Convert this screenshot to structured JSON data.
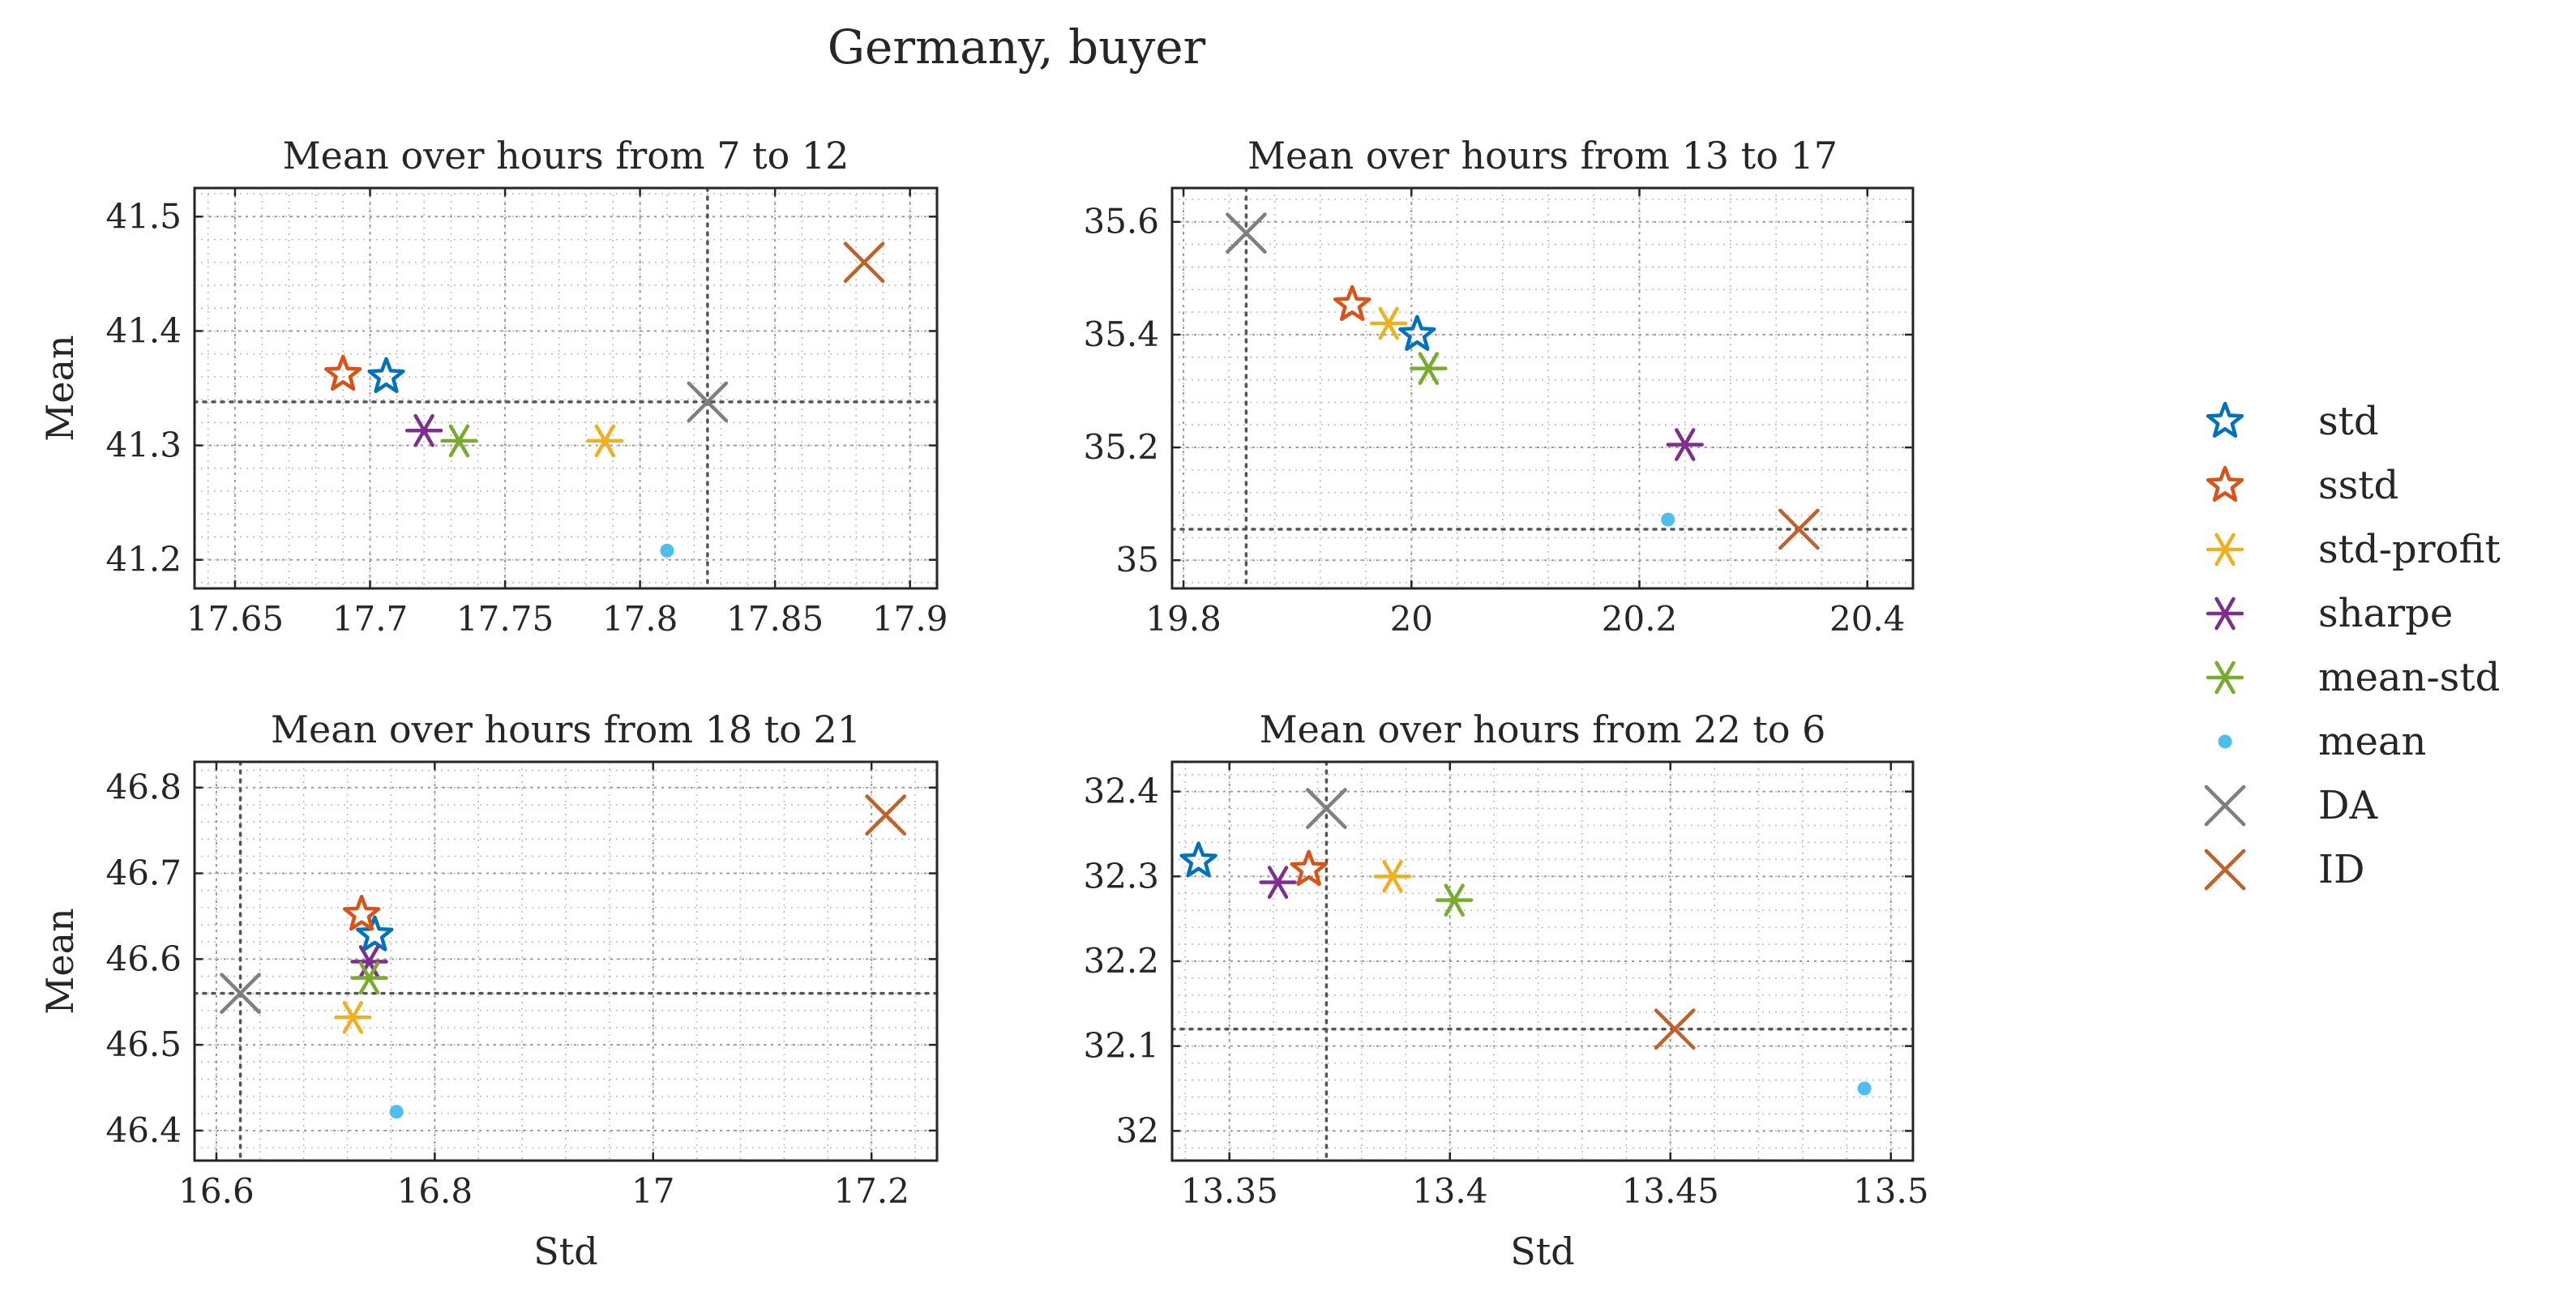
{
  "figure_title": "Germany, buyer",
  "colors": {
    "std": "#0072BD",
    "sstd": "#D95319",
    "std-profit": "#EDB120",
    "sharpe": "#7E2F8E",
    "mean-std": "#77AC30",
    "mean": "#4DBEEE",
    "DA": "#7f7f7f",
    "ID": "#C0602A",
    "axis": "#262626",
    "grid": "#bdbdbd"
  },
  "legend": [
    {
      "key": "std",
      "label": "std",
      "marker": "pentagram-icon"
    },
    {
      "key": "sstd",
      "label": "sstd",
      "marker": "pentagram-icon"
    },
    {
      "key": "std-profit",
      "label": "std-profit",
      "marker": "asterisk-icon"
    },
    {
      "key": "sharpe",
      "label": "sharpe",
      "marker": "asterisk-icon"
    },
    {
      "key": "mean-std",
      "label": "mean-std",
      "marker": "asterisk-icon"
    },
    {
      "key": "mean",
      "label": "mean",
      "marker": "dot-icon"
    },
    {
      "key": "DA",
      "label": "DA",
      "marker": "cross-icon"
    },
    {
      "key": "ID",
      "label": "ID",
      "marker": "cross-icon"
    }
  ],
  "chart_data": [
    {
      "type": "scatter",
      "title": "Mean over hours from 7 to 12",
      "xlabel": "",
      "ylabel": "Mean",
      "xlim": [
        17.635,
        17.91
      ],
      "ylim": [
        41.175,
        41.525
      ],
      "xticks": [
        17.65,
        17.7,
        17.75,
        17.8,
        17.85,
        17.9
      ],
      "xtick_labels": [
        "17.65",
        "17.7",
        "17.75",
        "17.8",
        "17.85",
        "17.9"
      ],
      "yticks": [
        41.2,
        41.3,
        41.4,
        41.5
      ],
      "ytick_labels": [
        "41.2",
        "41.3",
        "41.4",
        "41.5"
      ],
      "grid": true,
      "minor_grid": true,
      "ref_lines": {
        "x": 17.825,
        "y": 41.338
      },
      "points": [
        {
          "series": "std",
          "x": 17.706,
          "y": 41.36
        },
        {
          "series": "sstd",
          "x": 17.69,
          "y": 41.362
        },
        {
          "series": "std-profit",
          "x": 17.787,
          "y": 41.304
        },
        {
          "series": "sharpe",
          "x": 17.72,
          "y": 41.313
        },
        {
          "series": "mean-std",
          "x": 17.733,
          "y": 41.304
        },
        {
          "series": "mean",
          "x": 17.81,
          "y": 41.208
        },
        {
          "series": "DA",
          "x": 17.825,
          "y": 41.338
        },
        {
          "series": "ID",
          "x": 17.883,
          "y": 41.46
        }
      ]
    },
    {
      "type": "scatter",
      "title": "Mean over hours from 13 to 17",
      "xlabel": "",
      "ylabel": "",
      "xlim": [
        19.79,
        20.44
      ],
      "ylim": [
        34.95,
        35.66
      ],
      "xticks": [
        19.8,
        20.0,
        20.2,
        20.4
      ],
      "xtick_labels": [
        "19.8",
        "20",
        "20.2",
        "20.4"
      ],
      "yticks": [
        35.0,
        35.2,
        35.4,
        35.6
      ],
      "ytick_labels": [
        "35",
        "35.2",
        "35.4",
        "35.6"
      ],
      "grid": true,
      "minor_grid": true,
      "ref_lines": {
        "x": 19.855,
        "y": 35.055
      },
      "points": [
        {
          "series": "std",
          "x": 20.005,
          "y": 35.4
        },
        {
          "series": "sstd",
          "x": 19.948,
          "y": 35.453
        },
        {
          "series": "std-profit",
          "x": 19.98,
          "y": 35.42
        },
        {
          "series": "sharpe",
          "x": 20.24,
          "y": 35.205
        },
        {
          "series": "mean-std",
          "x": 20.015,
          "y": 35.34
        },
        {
          "series": "mean",
          "x": 20.225,
          "y": 35.072
        },
        {
          "series": "DA",
          "x": 19.855,
          "y": 35.58
        },
        {
          "series": "ID",
          "x": 20.34,
          "y": 35.055
        }
      ]
    },
    {
      "type": "scatter",
      "title": "Mean over hours from 18 to 21",
      "xlabel": "Std",
      "ylabel": "Mean",
      "xlim": [
        16.58,
        17.26
      ],
      "ylim": [
        46.365,
        46.83
      ],
      "xticks": [
        16.6,
        16.8,
        17.0,
        17.2
      ],
      "xtick_labels": [
        "16.6",
        "16.8",
        "17",
        "17.2"
      ],
      "yticks": [
        46.4,
        46.5,
        46.6,
        46.7,
        46.8
      ],
      "ytick_labels": [
        "46.4",
        "46.5",
        "46.6",
        "46.7",
        "46.8"
      ],
      "grid": true,
      "minor_grid": true,
      "ref_lines": {
        "x": 16.622,
        "y": 46.56
      },
      "points": [
        {
          "series": "std",
          "x": 16.745,
          "y": 46.628
        },
        {
          "series": "sstd",
          "x": 16.733,
          "y": 46.652
        },
        {
          "series": "std-profit",
          "x": 16.725,
          "y": 46.532
        },
        {
          "series": "sharpe",
          "x": 16.74,
          "y": 46.597
        },
        {
          "series": "mean-std",
          "x": 16.74,
          "y": 46.578
        },
        {
          "series": "mean",
          "x": 16.765,
          "y": 46.422
        },
        {
          "series": "DA",
          "x": 16.622,
          "y": 46.56
        },
        {
          "series": "ID",
          "x": 17.213,
          "y": 46.768
        }
      ]
    },
    {
      "type": "scatter",
      "title": "Mean over hours from 22 to 6",
      "xlabel": "Std",
      "ylabel": "",
      "xlim": [
        13.337,
        13.505
      ],
      "ylim": [
        31.965,
        32.435
      ],
      "xticks": [
        13.35,
        13.4,
        13.45,
        13.5
      ],
      "xtick_labels": [
        "13.35",
        "13.4",
        "13.45",
        "13.5"
      ],
      "yticks": [
        32.0,
        32.1,
        32.2,
        32.3,
        32.4
      ],
      "ytick_labels": [
        "32",
        "32.1",
        "32.2",
        "32.3",
        "32.4"
      ],
      "grid": true,
      "minor_grid": true,
      "ref_lines": {
        "x": 13.372,
        "y": 32.12
      },
      "points": [
        {
          "series": "std",
          "x": 13.343,
          "y": 32.318
        },
        {
          "series": "sstd",
          "x": 13.368,
          "y": 32.308
        },
        {
          "series": "std-profit",
          "x": 13.387,
          "y": 32.3
        },
        {
          "series": "sharpe",
          "x": 13.361,
          "y": 32.293
        },
        {
          "series": "mean-std",
          "x": 13.401,
          "y": 32.272
        },
        {
          "series": "mean",
          "x": 13.494,
          "y": 32.05
        },
        {
          "series": "DA",
          "x": 13.372,
          "y": 32.38
        },
        {
          "series": "ID",
          "x": 13.451,
          "y": 32.12
        }
      ]
    }
  ]
}
